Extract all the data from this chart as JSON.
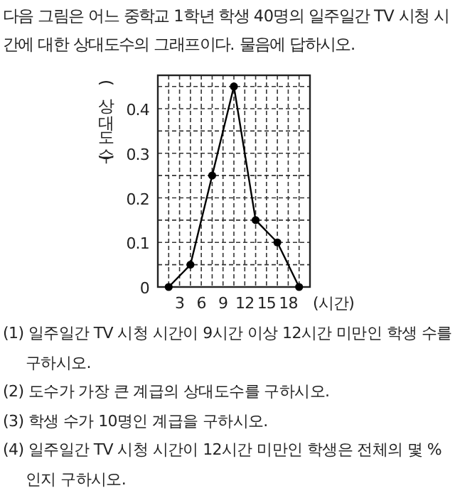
{
  "chart_data": {
    "type": "line",
    "title": "다음 그림은 어느 중학교 1학년 학생 40명의 일주일간 TV 시청 시간에 대한 상대도수의 그래프이다. 물음에 답하시오.",
    "xlabel": "(시간)",
    "ylabel": "(상대도수)",
    "x": [
      1.5,
      4.5,
      7.5,
      10.5,
      13.5,
      16.5,
      19.5
    ],
    "values": [
      0,
      0.05,
      0.25,
      0.45,
      0.15,
      0.1,
      0
    ],
    "color": "#000000",
    "marker": "circle",
    "xlim": [
      0,
      21
    ],
    "ylim": [
      0,
      0.475
    ],
    "xticks": [
      {
        "value": 1.5,
        "label": null
      },
      3,
      {
        "value": 4.5,
        "label": null
      },
      6,
      {
        "value": 7.5,
        "label": null
      },
      9,
      {
        "value": 10.5,
        "label": null
      },
      12,
      {
        "value": 13.5,
        "label": null
      },
      15,
      {
        "value": 16.5,
        "label": null
      },
      18,
      {
        "value": 19.5,
        "label": null
      }
    ],
    "yticks": [
      0,
      {
        "value": 0.05,
        "label": null
      },
      0.1,
      {
        "value": 0.15,
        "label": null
      },
      0.2,
      {
        "value": 0.25,
        "label": null
      },
      0.3,
      {
        "value": 0.35,
        "label": null
      },
      0.4,
      {
        "value": 0.45,
        "label": null
      }
    ],
    "grid": true,
    "annotations": [
      "(1) 일주일간 TV 시청 시간이 9시간 이상 12시간 미만인 학생 수를 구하시오.",
      "(2) 도수가 가장 큰 계급의 상대도수를 구하시오.",
      "(3) 학생 수가 10명인 계급을 구하시오.",
      "(4) 일주일간 TV 시청 시간이 12시간 미만인 학생은 전체의 몇 %인지 구하시오."
    ]
  }
}
